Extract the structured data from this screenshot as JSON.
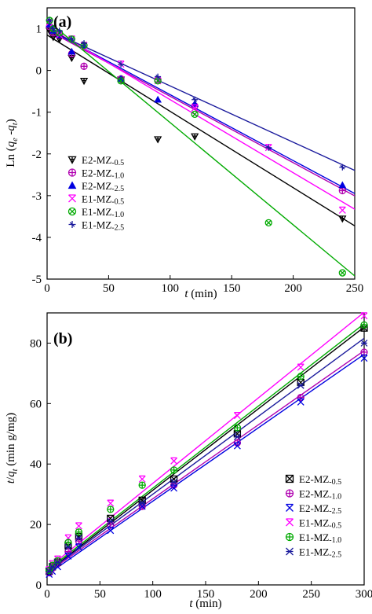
{
  "chart_data": [
    {
      "type": "scatter",
      "panel_label": "(a)",
      "xlabel_italic": "t",
      "xlabel_unit": " (min)",
      "ylabel_prefix": "Ln (",
      "ylabel_q": "q",
      "ylabel_sub_e": "e",
      "ylabel_mid": " -",
      "ylabel_sub_t": "t",
      "ylabel_suffix": ")",
      "xlim": [
        0,
        250
      ],
      "ylim": [
        -5,
        1.5
      ],
      "x_ticks": [
        0,
        50,
        100,
        150,
        200,
        250
      ],
      "x_tick_labels": [
        "0",
        "50",
        "100",
        "150",
        "200",
        "250"
      ],
      "y_ticks": [
        -5,
        -4,
        -3,
        -2,
        -1,
        0,
        1
      ],
      "y_tick_labels": [
        "-5",
        "-4",
        "-3",
        "-2",
        "-1",
        "0",
        "1"
      ],
      "legend_position": "left",
      "series": [
        {
          "name": "E2-MZ-0.5",
          "name_main": "E2-MZ",
          "name_sub": "-0.5",
          "color": "#000000",
          "marker": "tri-down-cross",
          "x": [
            2,
            5,
            10,
            20,
            30,
            60,
            90,
            120,
            240
          ],
          "y": [
            0.95,
            0.8,
            0.75,
            0.3,
            -0.25,
            -0.22,
            -1.65,
            -1.58,
            -3.55
          ],
          "fit": [
            0.85,
            -0.0183
          ]
        },
        {
          "name": "E2-MZ-1.0",
          "name_main": "E2-MZ",
          "name_sub": "-1.0",
          "color": "#b000b0",
          "marker": "circle-plus",
          "x": [
            2,
            5,
            10,
            20,
            30,
            60,
            90,
            120,
            240
          ],
          "y": [
            1.05,
            0.9,
            0.85,
            0.4,
            0.1,
            -0.2,
            -0.22,
            -0.85,
            -2.88
          ],
          "fit": [
            0.97,
            -0.0159
          ]
        },
        {
          "name": "E2-MZ-2.5",
          "name_main": "E2-MZ",
          "name_sub": "-2.5",
          "color": "#0000e0",
          "marker": "triangle",
          "x": [
            2,
            5,
            10,
            20,
            30,
            60,
            90,
            120,
            240
          ],
          "y": [
            1.1,
            0.95,
            0.85,
            0.45,
            0.6,
            -0.2,
            -0.7,
            -0.8,
            -2.75
          ],
          "fit": [
            1.0,
            -0.0158
          ]
        },
        {
          "name": "E1-MZ-0.5",
          "name_main": "E1-MZ",
          "name_sub": "-0.5",
          "color": "#ff00ff",
          "marker": "x-tri",
          "x": [
            2,
            5,
            10,
            20,
            30,
            60,
            90,
            120,
            180,
            240
          ],
          "y": [
            1.15,
            1.0,
            0.85,
            0.75,
            0.6,
            0.15,
            -0.25,
            -0.9,
            -1.85,
            -3.35
          ],
          "fit": [
            1.05,
            -0.0175
          ]
        },
        {
          "name": "E1-MZ-1.0",
          "name_main": "E1-MZ",
          "name_sub": "-1.0",
          "color": "#00aa00",
          "marker": "circle-x",
          "x": [
            2,
            5,
            10,
            20,
            30,
            60,
            90,
            120,
            180,
            240
          ],
          "y": [
            1.2,
            1.0,
            0.9,
            0.75,
            0.6,
            -0.25,
            -0.25,
            -1.05,
            -3.65,
            -4.85
          ],
          "fit": [
            1.2,
            -0.0245
          ]
        },
        {
          "name": "E1-MZ-2.5",
          "name_main": "E1-MZ",
          "name_sub": "-2.5",
          "color": "#1a1a9c",
          "marker": "cross-tri",
          "x": [
            2,
            5,
            10,
            20,
            30,
            60,
            90,
            120,
            180,
            240
          ],
          "y": [
            1.2,
            1.0,
            0.95,
            0.75,
            0.65,
            0.15,
            -0.15,
            -0.7,
            -1.85,
            -2.32
          ],
          "fit": [
            0.98,
            -0.0135
          ]
        }
      ]
    },
    {
      "type": "scatter",
      "panel_label": "(b)",
      "xlabel_italic": "t",
      "xlabel_unit": " (min)",
      "ylabel_prefix_italic": "t",
      "ylabel_slash": "/",
      "ylabel_q": "q",
      "ylabel_sub_t": "t",
      "ylabel_unit": " (min g/mg)",
      "xlim": [
        0,
        300
      ],
      "ylim": [
        0,
        90
      ],
      "x_ticks": [
        0,
        50,
        100,
        150,
        200,
        250,
        300
      ],
      "x_tick_labels": [
        "0",
        "50",
        "100",
        "150",
        "200",
        "250",
        "300"
      ],
      "y_ticks": [
        0,
        20,
        40,
        60,
        80
      ],
      "y_tick_labels": [
        "0",
        "20",
        "40",
        "60",
        "80"
      ],
      "legend_position": "lower-right",
      "series": [
        {
          "name": "E2-MZ-0.5",
          "name_main": "E2-MZ",
          "name_sub": "-0.5",
          "color": "#000000",
          "marker": "square-x",
          "x": [
            2,
            5,
            10,
            20,
            30,
            60,
            90,
            120,
            180,
            240,
            300
          ],
          "y": [
            4.5,
            6,
            7.5,
            13,
            16,
            22,
            28,
            35,
            50,
            67,
            85
          ],
          "fit": [
            4.3,
            0.27
          ]
        },
        {
          "name": "E2-MZ-1.0",
          "name_main": "E2-MZ",
          "name_sub": "-1.0",
          "color": "#b000b0",
          "marker": "circle-plus",
          "x": [
            2,
            5,
            10,
            20,
            30,
            60,
            90,
            120,
            180,
            240,
            300
          ],
          "y": [
            4,
            5.5,
            7,
            11,
            14.5,
            20,
            26,
            33,
            47,
            62,
            77
          ],
          "fit": [
            4.0,
            0.245
          ]
        },
        {
          "name": "E2-MZ-2.5",
          "name_main": "E2-MZ",
          "name_sub": "-2.5",
          "color": "#0000e0",
          "marker": "x-tri",
          "x": [
            2,
            5,
            10,
            20,
            30,
            60,
            90,
            120,
            180,
            240,
            300
          ],
          "y": [
            3.5,
            4.5,
            6,
            9.5,
            12.5,
            18,
            26,
            32,
            46,
            60.5,
            75
          ],
          "fit": [
            3.4,
            0.243
          ]
        },
        {
          "name": "E1-MZ-0.5",
          "name_main": "E1-MZ",
          "name_sub": "-0.5",
          "color": "#ff00ff",
          "marker": "x-tri",
          "x": [
            2,
            5,
            10,
            20,
            30,
            60,
            90,
            120,
            180,
            240,
            300
          ],
          "y": [
            5,
            7,
            8.5,
            15.5,
            19.5,
            27,
            35,
            41,
            56,
            72,
            89
          ],
          "fit": [
            5.3,
            0.283
          ]
        },
        {
          "name": "E1-MZ-1.0",
          "name_main": "E1-MZ",
          "name_sub": "-1.0",
          "color": "#00aa00",
          "marker": "circle-plus",
          "x": [
            2,
            5,
            10,
            20,
            30,
            60,
            90,
            120,
            180,
            240,
            300
          ],
          "y": [
            4.8,
            6.5,
            8,
            14,
            17.5,
            25,
            33,
            38,
            52,
            69,
            86
          ],
          "fit": [
            4.8,
            0.272
          ]
        },
        {
          "name": "E1-MZ-2.5",
          "name_main": "E1-MZ",
          "name_sub": "-2.5",
          "color": "#1a1a9c",
          "marker": "cross-x",
          "x": [
            2,
            5,
            10,
            20,
            30,
            60,
            90,
            120,
            180,
            240,
            300
          ],
          "y": [
            4.5,
            6,
            7.5,
            12.5,
            15.5,
            21,
            27,
            34,
            49,
            66,
            80
          ],
          "fit": [
            4.2,
            0.258
          ]
        }
      ]
    }
  ]
}
